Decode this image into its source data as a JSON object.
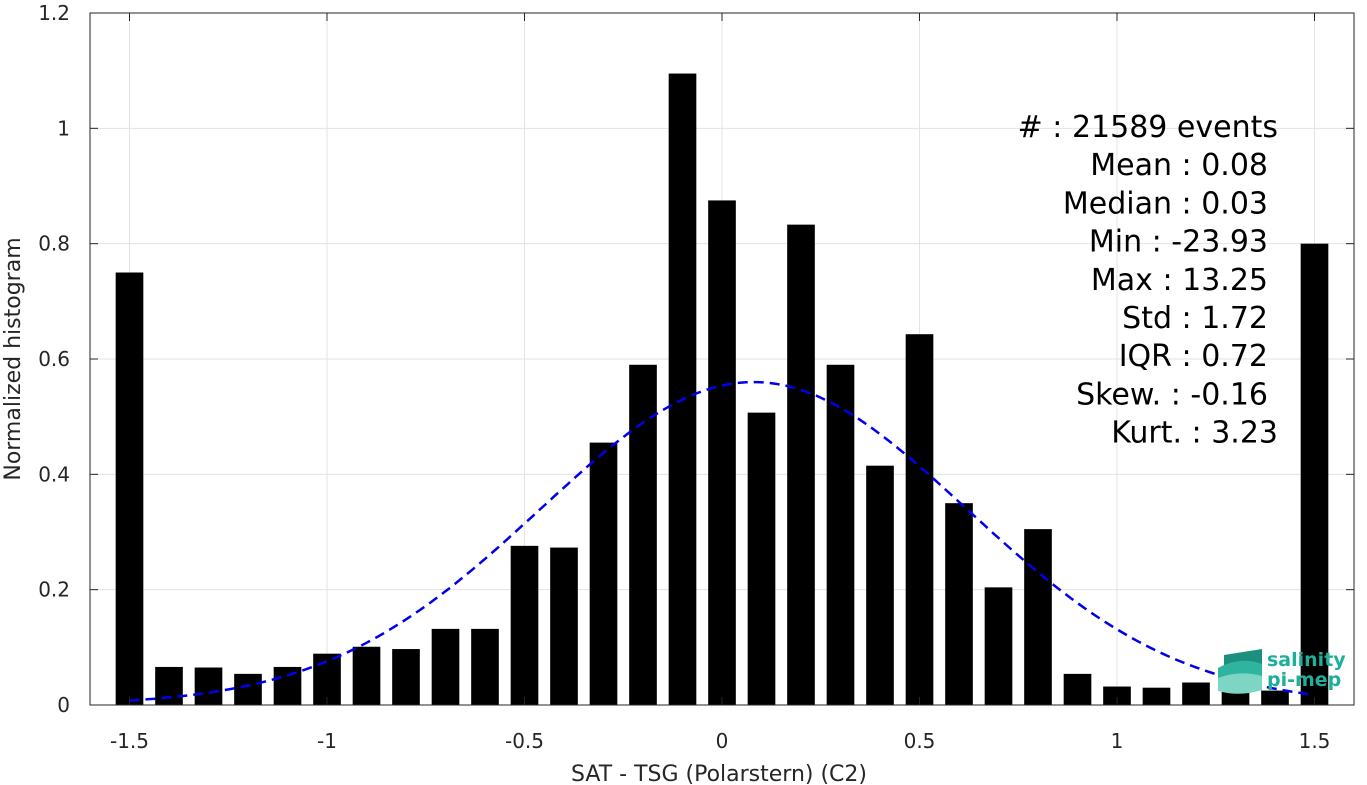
{
  "chart_data": {
    "type": "bar",
    "xlabel": "SAT - TSG (Polarstern) (C2)",
    "ylabel": "Normalized histogram",
    "xlim": [
      -1.6,
      1.6
    ],
    "ylim": [
      0,
      1.2
    ],
    "xticks": [
      -1.5,
      -1,
      -0.5,
      0,
      0.5,
      1,
      1.5
    ],
    "xtick_labels": [
      "-1.5",
      "-1",
      "-0.5",
      "0",
      "0.5",
      "1",
      "1.5"
    ],
    "yticks": [
      0,
      0.2,
      0.4,
      0.6,
      0.8,
      1,
      1.2
    ],
    "ytick_labels": [
      "0",
      "0.2",
      "0.4",
      "0.6",
      "0.8",
      "1",
      "1.2"
    ],
    "grid": true,
    "bar_color": "#000000",
    "bins": [
      -1.5,
      -1.4,
      -1.3,
      -1.2,
      -1.1,
      -1.0,
      -0.9,
      -0.8,
      -0.7,
      -0.6,
      -0.5,
      -0.4,
      -0.3,
      -0.2,
      -0.1,
      0.0,
      0.1,
      0.2,
      0.3,
      0.4,
      0.5,
      0.6,
      0.7,
      0.8,
      0.9,
      1.0,
      1.1,
      1.2,
      1.3,
      1.4,
      1.5
    ],
    "values": [
      0.75,
      0.066,
      0.065,
      0.054,
      0.066,
      0.089,
      0.101,
      0.097,
      0.132,
      0.132,
      0.276,
      0.273,
      0.455,
      0.59,
      1.095,
      0.875,
      0.507,
      0.833,
      0.59,
      0.415,
      0.643,
      0.35,
      0.204,
      0.305,
      0.054,
      0.032,
      0.03,
      0.039,
      0.026,
      0.025,
      0.8
    ],
    "fit_curve": {
      "style": "dashed",
      "color": "#0000ee",
      "mean": 0.08,
      "peak": 0.56,
      "sigma": 0.54,
      "x_range": [
        -1.5,
        1.5
      ]
    },
    "annotations": [
      "#  : 21589 events",
      "Mean : 0.08",
      "Median : 0.03",
      "Min : -23.93",
      "Max : 13.25",
      "Std : 1.72",
      "IQR : 0.72",
      "Skew. : -0.16",
      "Kurt. : 3.23"
    ]
  },
  "logo": {
    "line1": "salinity",
    "line2": "pi-mep",
    "color": "#1fae9a"
  }
}
